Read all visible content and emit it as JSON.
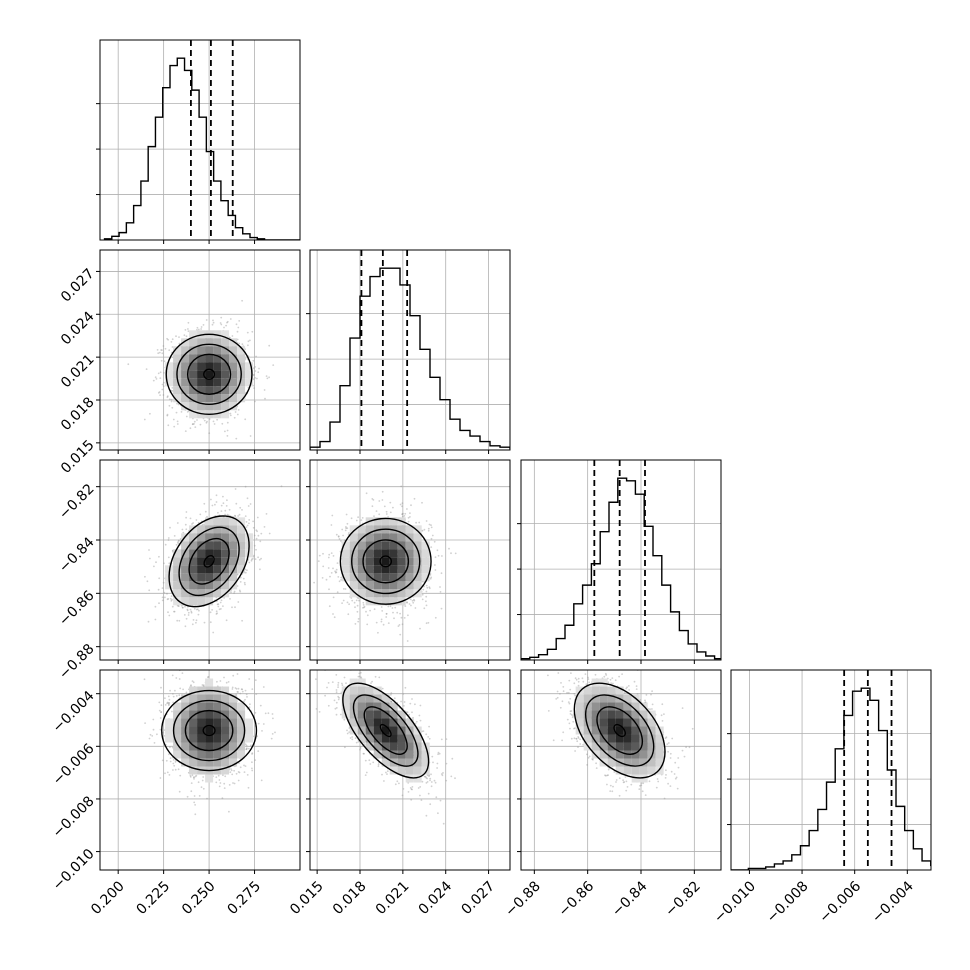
{
  "chart_data": {
    "type": "corner",
    "grid": true,
    "parameters": [
      {
        "range": [
          0.19,
          0.3
        ],
        "ticks": [
          0.2,
          0.225,
          0.25,
          0.275
        ],
        "tick_labels": [
          "0.200",
          "0.225",
          "0.250",
          "0.275"
        ],
        "center": 0.25,
        "sd": 0.011,
        "quantiles": [
          0.24,
          0.251,
          0.263
        ],
        "histogram": {
          "bin_start": 0.1925,
          "bin_width": 0.004,
          "counts": [
            1,
            3,
            6,
            14,
            28,
            48,
            76,
            100,
            124,
            142,
            148,
            138,
            122,
            100,
            72,
            48,
            32,
            20,
            10,
            5,
            2,
            1,
            0,
            0,
            0,
            0,
            0
          ]
        }
      },
      {
        "range": [
          0.0145,
          0.0285
        ],
        "ticks": [
          0.015,
          0.018,
          0.021,
          0.024,
          0.027
        ],
        "tick_labels": [
          "0.015",
          "0.018",
          "0.021",
          "0.024",
          "0.027"
        ],
        "center": 0.0198,
        "sd": 0.0015,
        "quantiles": [
          0.0181,
          0.0196,
          0.0213
        ],
        "histogram": {
          "bin_start": 0.0145,
          "bin_width": 0.0007,
          "counts": [
            2,
            6,
            20,
            46,
            80,
            110,
            124,
            130,
            130,
            118,
            96,
            72,
            52,
            36,
            22,
            14,
            10,
            6,
            3,
            2,
            1
          ]
        }
      },
      {
        "range": [
          -0.885,
          -0.81
        ],
        "ticks": [
          -0.88,
          -0.86,
          -0.84,
          -0.82
        ],
        "tick_labels": [
          "−0.88",
          "−0.86",
          "−0.84",
          "−0.82"
        ],
        "center": -0.848,
        "sd": 0.0085,
        "quantiles": [
          -0.8575,
          -0.848,
          -0.8385
        ],
        "histogram": {
          "bin_start": -0.885,
          "bin_width": 0.0033,
          "counts": [
            1,
            2,
            4,
            8,
            16,
            26,
            42,
            56,
            72,
            96,
            118,
            136,
            134,
            124,
            100,
            78,
            56,
            36,
            22,
            12,
            6,
            3,
            1
          ]
        }
      },
      {
        "range": [
          -0.0107,
          -0.0031
        ],
        "ticks": [
          -0.01,
          -0.008,
          -0.006,
          -0.004
        ],
        "tick_labels": [
          "−0.010",
          "−0.008",
          "−0.006",
          "−0.004"
        ],
        "center": -0.0054,
        "sd": 0.0009,
        "quantiles": [
          -0.0064,
          -0.0055,
          -0.0046
        ],
        "histogram": {
          "bin_start": -0.0107,
          "bin_width": 0.00033,
          "counts": [
            0,
            0,
            1,
            1,
            2,
            4,
            6,
            10,
            16,
            26,
            40,
            58,
            80,
            102,
            118,
            120,
            112,
            92,
            66,
            42,
            26,
            14,
            6,
            3,
            1
          ]
        }
      }
    ],
    "correlations": [
      {
        "rows": "1-0",
        "rho": 0.0
      },
      {
        "rows": "2-0",
        "rho": 0.35
      },
      {
        "rows": "2-1",
        "rho": 0.0
      },
      {
        "rows": "3-0",
        "rho": 0.0
      },
      {
        "rows": "3-1",
        "rho": -0.65
      },
      {
        "rows": "3-2",
        "rho": -0.45
      }
    ],
    "contour_levels_sigma": [
      0.5,
      1.0,
      1.5,
      2.0
    ],
    "colors": {
      "line": "#000000",
      "points": "#999999",
      "grid": "#b0b0b0",
      "density_dark": "#000000"
    }
  }
}
